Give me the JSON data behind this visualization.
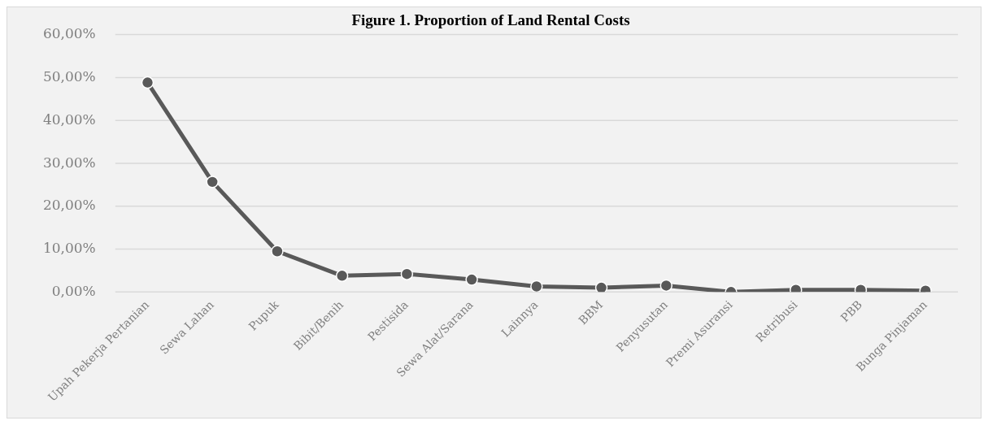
{
  "chart_data": {
    "type": "line",
    "title": "Figure 1. Proportion of Land Rental Costs",
    "categories": [
      "Upah Pekerja Pertanian",
      "Sewa Lahan",
      "Pupuk",
      "Bibit/Benih",
      "Pestisida",
      "Sewa Alat/Sarana",
      "Lainnya",
      "BBM",
      "Penyusutan",
      "Premi Asuransi",
      "Retribusi",
      "PBB",
      "Bunga Pinjaman"
    ],
    "series": [
      {
        "color": "#595959",
        "values": [
          48.9,
          25.7,
          9.5,
          3.8,
          4.2,
          2.9,
          1.3,
          1.0,
          1.5,
          0.0,
          0.5,
          0.5,
          0.3
        ]
      }
    ],
    "ylim": [
      0,
      60
    ],
    "yticks": [
      {
        "value": 0,
        "label": "0,00%"
      },
      {
        "value": 10,
        "label": "10,00%"
      },
      {
        "value": 20,
        "label": "20,00%"
      },
      {
        "value": 30,
        "label": "30,00%"
      },
      {
        "value": 40,
        "label": "40,00%"
      },
      {
        "value": 50,
        "label": "50,00%"
      },
      {
        "value": 60,
        "label": "60,00%"
      }
    ],
    "grid": "y",
    "legend": false,
    "marker": "circle",
    "line_style": "solid"
  }
}
